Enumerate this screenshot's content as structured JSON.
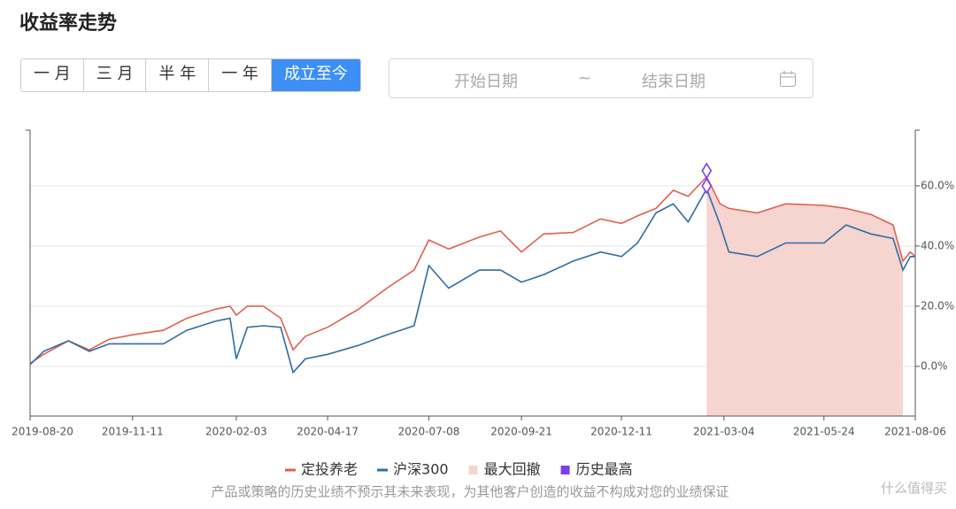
{
  "header": {
    "title": "收益率走势"
  },
  "tabs": {
    "items": [
      "一 月",
      "三 月",
      "半 年",
      "一 年",
      "成立至今"
    ],
    "active": 4
  },
  "date_range": {
    "start": "开始日期",
    "separator": "~",
    "end": "结束日期"
  },
  "chart_data": {
    "type": "line",
    "x": [
      "2019-08-20",
      "2019-08-31",
      "2019-09-20",
      "2019-10-07",
      "2019-10-23",
      "2019-11-11",
      "2019-12-06",
      "2019-12-25",
      "2020-01-17",
      "2020-01-29",
      "2020-02-03",
      "2020-02-12",
      "2020-02-25",
      "2020-03-10",
      "2020-03-20",
      "2020-03-30",
      "2020-04-17",
      "2020-05-12",
      "2020-06-04",
      "2020-06-26",
      "2020-07-08",
      "2020-07-24",
      "2020-08-18",
      "2020-09-04",
      "2020-09-21",
      "2020-10-09",
      "2020-11-02",
      "2020-11-24",
      "2020-12-11",
      "2020-12-24",
      "2021-01-08",
      "2021-01-22",
      "2021-02-03",
      "2021-02-18",
      "2021-03-01",
      "2021-03-08",
      "2021-03-31",
      "2021-04-23",
      "2021-05-24",
      "2021-06-11",
      "2021-07-01",
      "2021-07-19",
      "2021-07-27",
      "2021-08-02",
      "2021-08-06"
    ],
    "series": [
      {
        "name": "定投养老",
        "color": "#e0604d",
        "values": [
          1,
          4,
          8.5,
          5.5,
          9,
          10.5,
          12,
          16,
          19,
          20,
          17,
          20,
          20,
          16,
          5.5,
          10,
          13,
          19,
          26,
          32,
          42,
          39,
          43,
          45,
          38,
          44,
          44.5,
          49,
          47.5,
          50,
          52.5,
          58.5,
          56.5,
          63,
          54,
          52.5,
          51,
          54,
          53.5,
          52.5,
          50.5,
          47,
          35,
          38,
          36.5
        ]
      },
      {
        "name": "沪深300",
        "color": "#2e6da4",
        "values": [
          0.6,
          5,
          8.5,
          5,
          7.5,
          7.5,
          7.5,
          12,
          15,
          16,
          2.5,
          13,
          13.5,
          13,
          -2,
          2.5,
          4,
          7,
          10.5,
          13.5,
          33.5,
          26,
          32,
          32,
          28,
          30.5,
          35,
          38,
          36.5,
          41,
          51,
          54,
          48,
          59,
          47,
          38,
          36.5,
          41,
          41,
          47,
          44,
          42.5,
          32,
          36.5,
          36.5
        ]
      }
    ],
    "drawdown": {
      "name": "最大回撤",
      "color": "#f6d4d0",
      "start": "2021-02-18",
      "end": "2021-07-27"
    },
    "highs": {
      "name": "历史最高",
      "color": "#7a3ef0",
      "points": [
        {
          "x": "2021-02-18",
          "y": 65
        },
        {
          "x": "2021-02-18",
          "y": 60
        }
      ]
    },
    "xlim": [
      "2019-08-20",
      "2021-08-06"
    ],
    "xticks": [
      "2019-08-20",
      "2019-11-11",
      "2020-02-03",
      "2020-04-17",
      "2020-07-08",
      "2020-09-21",
      "2020-12-11",
      "2021-03-04",
      "2021-05-24",
      "2021-08-06"
    ],
    "ylim": [
      -16.5,
      78.5
    ],
    "yticks": [
      {
        "value": 0,
        "label": "0.0%"
      },
      {
        "value": 20,
        "label": "20.0%"
      },
      {
        "value": 40,
        "label": "40.0%"
      },
      {
        "value": 60,
        "label": "60.0%"
      }
    ],
    "grid": true
  },
  "footer": {
    "disclaimer": "产品或策略的历史业绩不预示其未来表现，为其他客户创造的收益不构成对您的业绩保证",
    "watermark": "什么值得买"
  }
}
